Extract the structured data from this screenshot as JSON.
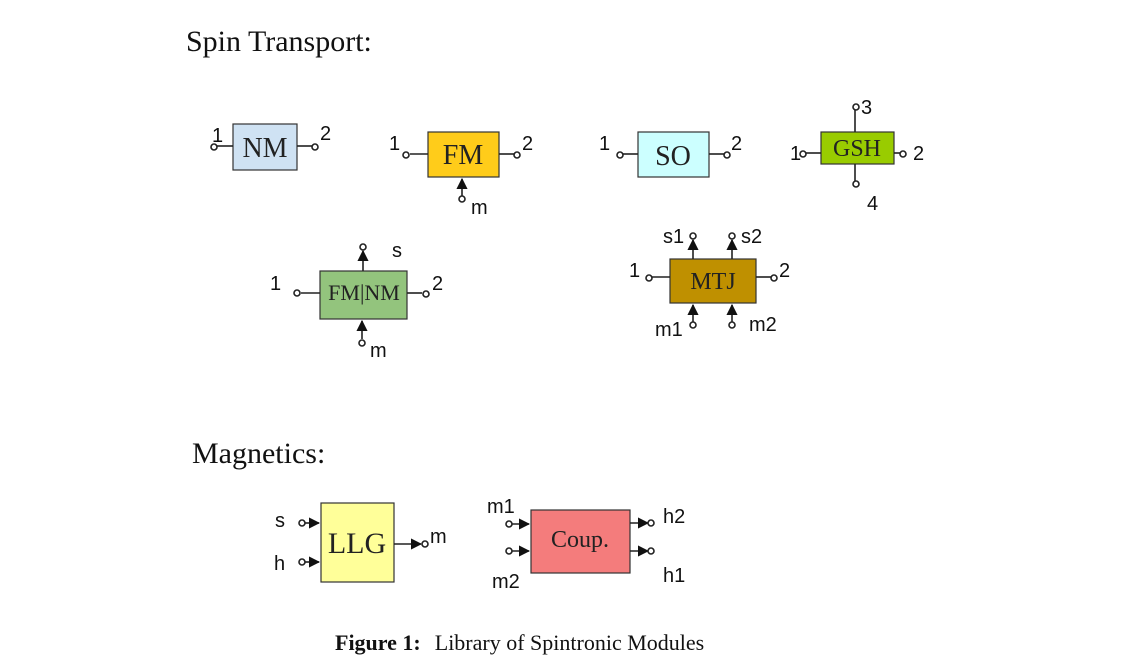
{
  "sections": {
    "spin_transport": "Spin Transport:",
    "magnetics": "Magnetics:"
  },
  "blocks": {
    "nm": {
      "label": "NM",
      "color": "#cfe2f3",
      "ports": [
        "1",
        "2"
      ]
    },
    "fm": {
      "label": "FM",
      "color": "#ffcc1a",
      "ports": [
        "1",
        "2",
        "m"
      ]
    },
    "so": {
      "label": "SO",
      "color": "#ccffff",
      "ports": [
        "1",
        "2"
      ]
    },
    "gsh": {
      "label": "GSH",
      "color": "#99cc00",
      "ports": [
        "1",
        "2",
        "3",
        "4"
      ]
    },
    "fmnm": {
      "label": "FM|NM",
      "color": "#93c47d",
      "ports": [
        "1",
        "2",
        "s",
        "m"
      ]
    },
    "mtj": {
      "label": "MTJ",
      "color": "#bf9000",
      "ports": [
        "1",
        "2",
        "s1",
        "s2",
        "m1",
        "m2"
      ]
    },
    "llg": {
      "label": "LLG",
      "color": "#ffff99",
      "ports": [
        "s",
        "h",
        "m"
      ]
    },
    "coup": {
      "label": "Coup.",
      "color": "#f47c7c",
      "ports": [
        "m1",
        "m2",
        "h2",
        "h1"
      ]
    }
  },
  "caption": {
    "prefix": "Figure 1:",
    "text": "Library of Spintronic Modules"
  }
}
